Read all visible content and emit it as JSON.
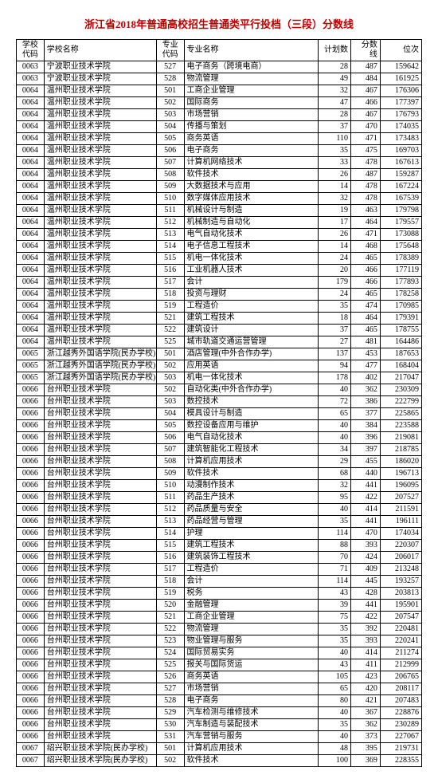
{
  "title": "浙江省2018年普通高校招生普通类平行投档（三段）分数线",
  "columns": [
    {
      "key": "schoolCode",
      "label": "学校\n代码",
      "class": "code"
    },
    {
      "key": "schoolName",
      "label": "学校名称",
      "class": ""
    },
    {
      "key": "majorCode",
      "label": "专业\n代码",
      "class": "code"
    },
    {
      "key": "majorName",
      "label": "专业名称",
      "class": ""
    },
    {
      "key": "plan",
      "label": "计划数",
      "class": "num"
    },
    {
      "key": "score",
      "label": "分数线",
      "class": "num"
    },
    {
      "key": "rank",
      "label": "位次",
      "class": "num"
    }
  ],
  "rows": [
    [
      "0063",
      "宁波职业技术学院",
      "527",
      "电子商务（跨境电商）",
      "28",
      "487",
      "159642"
    ],
    [
      "0063",
      "宁波职业技术学院",
      "528",
      "物流管理",
      "49",
      "484",
      "161925"
    ],
    [
      "0064",
      "温州职业技术学院",
      "501",
      "工商企业管理",
      "32",
      "467",
      "176306"
    ],
    [
      "0064",
      "温州职业技术学院",
      "502",
      "国际商务",
      "47",
      "466",
      "177397"
    ],
    [
      "0064",
      "温州职业技术学院",
      "503",
      "市场营销",
      "28",
      "467",
      "176793"
    ],
    [
      "0064",
      "温州职业技术学院",
      "504",
      "传播与策划",
      "37",
      "470",
      "174035"
    ],
    [
      "0064",
      "温州职业技术学院",
      "505",
      "商务英语",
      "110",
      "471",
      "173483"
    ],
    [
      "0064",
      "温州职业技术学院",
      "506",
      "电子商务",
      "35",
      "475",
      "169703"
    ],
    [
      "0064",
      "温州职业技术学院",
      "507",
      "计算机网络技术",
      "33",
      "478",
      "167613"
    ],
    [
      "0064",
      "温州职业技术学院",
      "508",
      "软件技术",
      "26",
      "487",
      "159287"
    ],
    [
      "0064",
      "温州职业技术学院",
      "509",
      "大数据技术与应用",
      "14",
      "478",
      "167224"
    ],
    [
      "0064",
      "温州职业技术学院",
      "510",
      "数字媒体应用技术",
      "32",
      "478",
      "167539"
    ],
    [
      "0064",
      "温州职业技术学院",
      "511",
      "机械设计与制造",
      "19",
      "463",
      "179798"
    ],
    [
      "0064",
      "温州职业技术学院",
      "512",
      "机械制造与自动化",
      "17",
      "464",
      "179557"
    ],
    [
      "0064",
      "温州职业技术学院",
      "513",
      "电气自动化技术",
      "26",
      "471",
      "173088"
    ],
    [
      "0064",
      "温州职业技术学院",
      "514",
      "电子信息工程技术",
      "14",
      "468",
      "175648"
    ],
    [
      "0064",
      "温州职业技术学院",
      "515",
      "机电一体化技术",
      "24",
      "465",
      "178389"
    ],
    [
      "0064",
      "温州职业技术学院",
      "516",
      "工业机器人技术",
      "20",
      "466",
      "177119"
    ],
    [
      "0064",
      "温州职业技术学院",
      "517",
      "会计",
      "179",
      "466",
      "177893"
    ],
    [
      "0064",
      "温州职业技术学院",
      "518",
      "投资与理财",
      "24",
      "465",
      "178258"
    ],
    [
      "0064",
      "温州职业技术学院",
      "519",
      "工程造价",
      "35",
      "474",
      "170985"
    ],
    [
      "0064",
      "温州职业技术学院",
      "521",
      "建筑工程技术",
      "18",
      "464",
      "179391"
    ],
    [
      "0064",
      "温州职业技术学院",
      "522",
      "建筑设计",
      "37",
      "465",
      "178755"
    ],
    [
      "0064",
      "温州职业技术学院",
      "525",
      "城市轨道交通运营管理",
      "27",
      "481",
      "164486"
    ],
    [
      "0065",
      "浙江越秀外国语学院(民办学校)",
      "501",
      "酒店管理(中外合作办学)",
      "137",
      "453",
      "187653"
    ],
    [
      "0065",
      "浙江越秀外国语学院(民办学校)",
      "502",
      "应用英语",
      "94",
      "477",
      "168404"
    ],
    [
      "0065",
      "浙江越秀外国语学院(民办学校)",
      "503",
      "机电一体化技术",
      "178",
      "402",
      "217047"
    ],
    [
      "0066",
      "台州职业技术学院",
      "502",
      "自动化类(中外合作办学)",
      "40",
      "362",
      "230309"
    ],
    [
      "0066",
      "台州职业技术学院",
      "503",
      "数控技术",
      "72",
      "386",
      "222799"
    ],
    [
      "0066",
      "台州职业技术学院",
      "504",
      "模具设计与制造",
      "65",
      "377",
      "225865"
    ],
    [
      "0066",
      "台州职业技术学院",
      "505",
      "数控设备应用与维护",
      "40",
      "384",
      "223588"
    ],
    [
      "0066",
      "台州职业技术学院",
      "506",
      "电气自动化技术",
      "40",
      "396",
      "219081"
    ],
    [
      "0066",
      "台州职业技术学院",
      "507",
      "建筑智能化工程技术",
      "34",
      "397",
      "218785"
    ],
    [
      "0066",
      "台州职业技术学院",
      "508",
      "计算机应用技术",
      "29",
      "455",
      "186020"
    ],
    [
      "0066",
      "台州职业技术学院",
      "509",
      "软件技术",
      "68",
      "440",
      "196713"
    ],
    [
      "0066",
      "台州职业技术学院",
      "510",
      "动漫制作技术",
      "32",
      "441",
      "196095"
    ],
    [
      "0066",
      "台州职业技术学院",
      "511",
      "药品生产技术",
      "95",
      "422",
      "207527"
    ],
    [
      "0066",
      "台州职业技术学院",
      "512",
      "药品质量与安全",
      "40",
      "414",
      "211591"
    ],
    [
      "0066",
      "台州职业技术学院",
      "513",
      "药品经营与管理",
      "35",
      "441",
      "196111"
    ],
    [
      "0066",
      "台州职业技术学院",
      "514",
      "护理",
      "114",
      "470",
      "174034"
    ],
    [
      "0066",
      "台州职业技术学院",
      "515",
      "建筑工程技术",
      "88",
      "393",
      "220307"
    ],
    [
      "0066",
      "台州职业技术学院",
      "516",
      "建筑装饰工程技术",
      "70",
      "424",
      "206017"
    ],
    [
      "0066",
      "台州职业技术学院",
      "517",
      "工程造价",
      "71",
      "409",
      "213248"
    ],
    [
      "0066",
      "台州职业技术学院",
      "518",
      "会计",
      "114",
      "445",
      "193257"
    ],
    [
      "0066",
      "台州职业技术学院",
      "519",
      "税务",
      "43",
      "428",
      "203813"
    ],
    [
      "0066",
      "台州职业技术学院",
      "520",
      "金融管理",
      "39",
      "441",
      "195901"
    ],
    [
      "0066",
      "台州职业技术学院",
      "521",
      "工商企业管理",
      "75",
      "422",
      "207547"
    ],
    [
      "0066",
      "台州职业技术学院",
      "522",
      "物流管理",
      "35",
      "392",
      "220481"
    ],
    [
      "0066",
      "台州职业技术学院",
      "523",
      "物业管理与服务",
      "35",
      "393",
      "220241"
    ],
    [
      "0066",
      "台州职业技术学院",
      "524",
      "国际贸易实务",
      "40",
      "414",
      "211274"
    ],
    [
      "0066",
      "台州职业技术学院",
      "525",
      "报关与国际货运",
      "43",
      "411",
      "212999"
    ],
    [
      "0066",
      "台州职业技术学院",
      "526",
      "商务英语",
      "105",
      "423",
      "206765"
    ],
    [
      "0066",
      "台州职业技术学院",
      "527",
      "市场营销",
      "65",
      "420",
      "208117"
    ],
    [
      "0066",
      "台州职业技术学院",
      "528",
      "电子商务",
      "80",
      "421",
      "207483"
    ],
    [
      "0066",
      "台州职业技术学院",
      "529",
      "汽车检测与维修技术",
      "40",
      "367",
      "228876"
    ],
    [
      "0066",
      "台州职业技术学院",
      "530",
      "汽车制造与装配技术",
      "35",
      "362",
      "230289"
    ],
    [
      "0066",
      "台州职业技术学院",
      "531",
      "汽车营销与服务",
      "40",
      "373",
      "227067"
    ],
    [
      "0067",
      "绍兴职业技术学院(民办学校)",
      "501",
      "计算机应用技术",
      "48",
      "395",
      "219731"
    ],
    [
      "0067",
      "绍兴职业技术学院(民办学校)",
      "502",
      "软件技术",
      "100",
      "369",
      "228355"
    ]
  ]
}
